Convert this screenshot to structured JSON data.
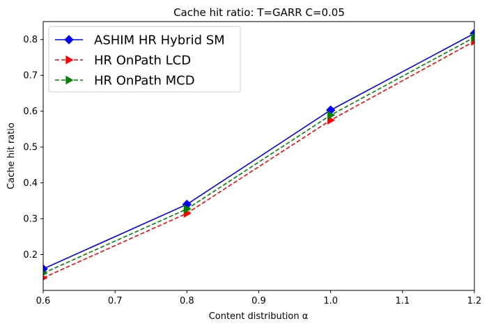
{
  "chart_data": {
    "type": "line",
    "title": "Cache hit ratio: T=GARR C=0.05",
    "xlabel": "Content distribution α",
    "ylabel": "Cache hit ratio",
    "xlim": [
      0.6,
      1.2
    ],
    "ylim": [
      0.1,
      0.85
    ],
    "x": [
      0.6,
      0.8,
      1.0,
      1.2
    ],
    "xticks": [
      "0.6",
      "0.7",
      "0.8",
      "0.9",
      "1.0",
      "1.1",
      "1.2"
    ],
    "yticks": [
      "0.2",
      "0.3",
      "0.4",
      "0.5",
      "0.6",
      "0.7",
      "0.8"
    ],
    "grid": false,
    "legend_position": "top-left",
    "series": [
      {
        "name": "ASHIM HR Hybrid SM",
        "values": [
          0.16,
          0.34,
          0.603,
          0.817
        ],
        "color": "#0000ff",
        "linestyle": "solid",
        "marker": "diamond"
      },
      {
        "name": "HR OnPath LCD",
        "values": [
          0.135,
          0.315,
          0.575,
          0.795
        ],
        "color": "#ff0000",
        "linestyle": "dashed",
        "marker": "triangle-right"
      },
      {
        "name": "HR OnPath MCD",
        "values": [
          0.148,
          0.327,
          0.589,
          0.806
        ],
        "color": "#008000",
        "linestyle": "dashed",
        "marker": "triangle-right"
      }
    ]
  }
}
